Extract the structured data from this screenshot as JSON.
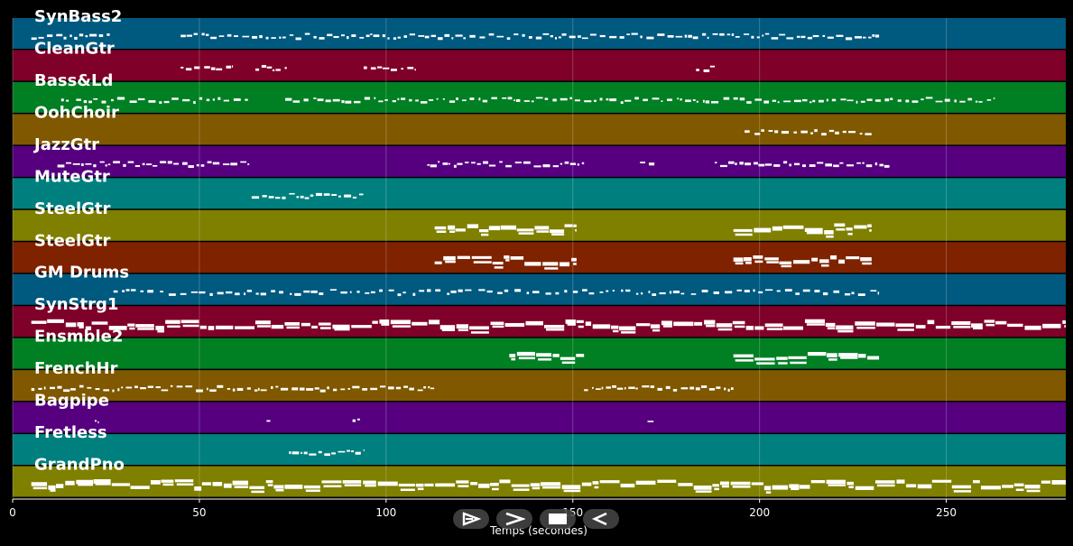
{
  "chart_data": {
    "type": "piano-roll",
    "xlabel": "Temps (secondes)",
    "xlim": [
      0,
      282
    ],
    "x_ticks": [
      0,
      50,
      100,
      150,
      200,
      250
    ],
    "grid": true,
    "tracks": [
      {
        "name": "SynBass2",
        "color": "#00597f",
        "segments": [
          [
            5,
            26
          ],
          [
            45,
            232
          ]
        ],
        "density": 0.55
      },
      {
        "name": "CleanGtr",
        "color": "#7f0029",
        "segments": [
          [
            45,
            59
          ],
          [
            65,
            74
          ],
          [
            94,
            108
          ],
          [
            183,
            188
          ]
        ],
        "density": 0.5
      },
      {
        "name": "Bass&Ld",
        "color": "#007f23",
        "segments": [
          [
            13,
            15
          ],
          [
            17,
            63
          ],
          [
            73,
            153
          ],
          [
            153,
            193
          ],
          [
            193,
            263
          ]
        ],
        "density": 0.45
      },
      {
        "name": "OohChoir",
        "color": "#7f5800",
        "segments": [
          [
            196,
            230
          ]
        ],
        "density": 0.45
      },
      {
        "name": "JazzGtr",
        "color": "#560080",
        "segments": [
          [
            12,
            64
          ],
          [
            111,
            153
          ],
          [
            168,
            172
          ],
          [
            188,
            235
          ]
        ],
        "density": 0.6
      },
      {
        "name": "MuteGtr",
        "color": "#007f7f",
        "segments": [
          [
            64,
            94
          ]
        ],
        "density": 0.6
      },
      {
        "name": "SteelGtr",
        "color": "#7f7f00",
        "segments": [
          [
            113,
            151
          ],
          [
            193,
            230
          ]
        ],
        "density": 0.9
      },
      {
        "name": "SteelGtr",
        "color": "#7f2200",
        "segments": [
          [
            113,
            151
          ],
          [
            193,
            230
          ]
        ],
        "density": 0.9
      },
      {
        "name": "GM Drums",
        "color": "#00597f",
        "segments": [
          [
            27,
            232
          ]
        ],
        "density": 0.25
      },
      {
        "name": "SynStrg1",
        "color": "#7f0029",
        "segments": [
          [
            5,
            282
          ]
        ],
        "density": 0.95
      },
      {
        "name": "Ensmble2",
        "color": "#007f23",
        "segments": [
          [
            133,
            153
          ],
          [
            193,
            232
          ]
        ],
        "density": 0.95
      },
      {
        "name": "FrenchHr",
        "color": "#7f5800",
        "segments": [
          [
            5,
            113
          ],
          [
            153,
            193
          ]
        ],
        "density": 0.55
      },
      {
        "name": "Bagpipe",
        "color": "#560080",
        "segments": [
          [
            22,
            23
          ],
          [
            68,
            69
          ],
          [
            91,
            93
          ],
          [
            170,
            172
          ]
        ],
        "density": 0.6
      },
      {
        "name": "Fretless",
        "color": "#007f7f",
        "segments": [
          [
            74,
            94
          ]
        ],
        "density": 0.7
      },
      {
        "name": "GrandPno",
        "color": "#7f7f00",
        "segments": [
          [
            5,
            282
          ]
        ],
        "density": 0.95
      }
    ]
  },
  "controls": {
    "play_icon": "play-outline-icon",
    "forward_icon": "chevron-right-icon",
    "stop_icon": "stop-icon",
    "back_icon": "triangle-left-icon"
  }
}
